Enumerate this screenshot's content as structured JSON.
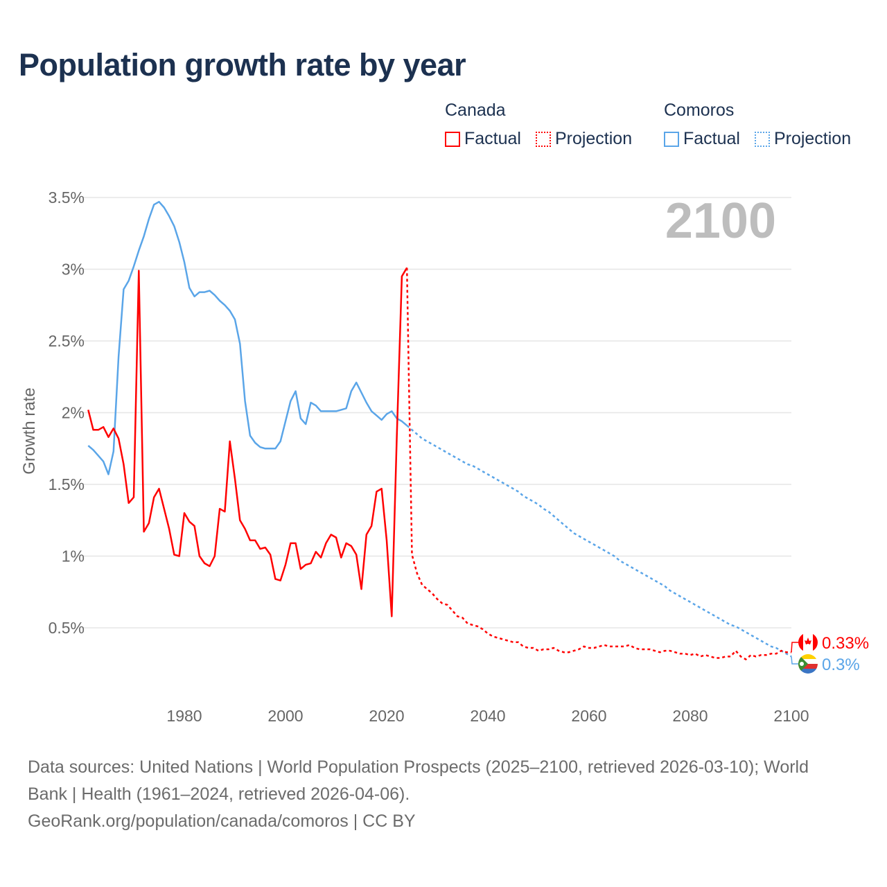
{
  "chart_data": {
    "type": "line",
    "title": "Population growth rate by year",
    "xlabel": "",
    "ylabel": "Growth rate",
    "xlim": [
      1960,
      2100
    ],
    "ylim": [
      0.2,
      3.6
    ],
    "x_ticks": [
      1980,
      2000,
      2020,
      2040,
      2060,
      2080,
      2100
    ],
    "x_tick_labels": [
      "1980",
      "2000",
      "2020",
      "2040",
      "2060",
      "2080",
      "2100"
    ],
    "y_ticks": [
      0.5,
      1,
      1.5,
      2,
      2.5,
      3,
      3.5
    ],
    "y_tick_labels": [
      "0.5%",
      "1%",
      "1.5%",
      "2%",
      "2.5%",
      "3%",
      "3.5%"
    ],
    "grid": true,
    "legend_position": "top-right",
    "current_year_label": "2100",
    "series": [
      {
        "name": "Canada",
        "color": "#ff0000",
        "factual_start_year": 1961,
        "factual": [
          2.02,
          1.88,
          1.88,
          1.9,
          1.83,
          1.89,
          1.82,
          1.64,
          1.37,
          1.41,
          2.99,
          1.17,
          1.23,
          1.41,
          1.47,
          1.33,
          1.19,
          1.01,
          1.0,
          1.3,
          1.24,
          1.21,
          1.0,
          0.95,
          0.93,
          1.0,
          1.33,
          1.31,
          1.8,
          1.54,
          1.25,
          1.19,
          1.11,
          1.11,
          1.05,
          1.06,
          1.01,
          0.84,
          0.83,
          0.94,
          1.09,
          1.09,
          0.91,
          0.94,
          0.95,
          1.03,
          0.99,
          1.09,
          1.15,
          1.13,
          0.99,
          1.09,
          1.07,
          1.01,
          0.77,
          1.15,
          1.21,
          1.45,
          1.47,
          1.11,
          0.58,
          1.83,
          2.95,
          3.01
        ],
        "projection_start_year": 2024,
        "projection": [
          3.01,
          1.01,
          0.88,
          0.8,
          0.77,
          0.74,
          0.7,
          0.67,
          0.66,
          0.62,
          0.58,
          0.57,
          0.53,
          0.52,
          0.51,
          0.49,
          0.46,
          0.44,
          0.43,
          0.42,
          0.41,
          0.4,
          0.4,
          0.37,
          0.36,
          0.36,
          0.34,
          0.35,
          0.35,
          0.36,
          0.34,
          0.33,
          0.33,
          0.34,
          0.35,
          0.37,
          0.36,
          0.36,
          0.37,
          0.38,
          0.37,
          0.37,
          0.37,
          0.37,
          0.38,
          0.36,
          0.35,
          0.35,
          0.35,
          0.34,
          0.33,
          0.34,
          0.34,
          0.33,
          0.32,
          0.32,
          0.31,
          0.32,
          0.3,
          0.31,
          0.3,
          0.29,
          0.29,
          0.3,
          0.3,
          0.34,
          0.3,
          0.28,
          0.31,
          0.3,
          0.31,
          0.31,
          0.32,
          0.32,
          0.34,
          0.33,
          0.33
        ],
        "end_label": "0.33%"
      },
      {
        "name": "Comoros",
        "color": "#5aa5e8",
        "factual_start_year": 1961,
        "factual": [
          1.77,
          1.74,
          1.7,
          1.66,
          1.57,
          1.73,
          2.39,
          2.86,
          2.92,
          3.02,
          3.13,
          3.23,
          3.35,
          3.45,
          3.47,
          3.43,
          3.37,
          3.3,
          3.19,
          3.05,
          2.87,
          2.81,
          2.84,
          2.84,
          2.85,
          2.82,
          2.78,
          2.75,
          2.71,
          2.65,
          2.48,
          2.08,
          1.84,
          1.79,
          1.76,
          1.75,
          1.75,
          1.75,
          1.8,
          1.94,
          2.08,
          2.15,
          1.96,
          1.92,
          2.07,
          2.05,
          2.01,
          2.01,
          2.01,
          2.01,
          2.02,
          2.03,
          2.15,
          2.21,
          2.14,
          2.07,
          2.01,
          1.98,
          1.95,
          1.99,
          2.01,
          1.96,
          1.94,
          1.91
        ],
        "projection_start_year": 2024,
        "projection": [
          1.91,
          1.88,
          1.85,
          1.82,
          1.8,
          1.78,
          1.76,
          1.74,
          1.72,
          1.7,
          1.68,
          1.66,
          1.64,
          1.63,
          1.61,
          1.59,
          1.57,
          1.55,
          1.53,
          1.51,
          1.49,
          1.47,
          1.45,
          1.42,
          1.4,
          1.38,
          1.36,
          1.33,
          1.31,
          1.28,
          1.25,
          1.22,
          1.19,
          1.16,
          1.14,
          1.12,
          1.1,
          1.08,
          1.06,
          1.04,
          1.02,
          1.0,
          0.97,
          0.95,
          0.93,
          0.91,
          0.89,
          0.87,
          0.85,
          0.83,
          0.81,
          0.79,
          0.76,
          0.74,
          0.72,
          0.7,
          0.68,
          0.66,
          0.64,
          0.62,
          0.6,
          0.58,
          0.56,
          0.54,
          0.52,
          0.51,
          0.49,
          0.47,
          0.45,
          0.43,
          0.41,
          0.39,
          0.37,
          0.36,
          0.34,
          0.32,
          0.3
        ],
        "end_label": "0.3%"
      }
    ]
  },
  "legend": {
    "groups": [
      {
        "name": "Canada",
        "factual": "Factual",
        "projection": "Projection"
      },
      {
        "name": "Comoros",
        "factual": "Factual",
        "projection": "Projection"
      }
    ]
  },
  "footer": {
    "sources": "Data sources: United Nations | World Population Prospects (2025–2100, retrieved 2026-03-10); World Bank | Health (1961–2024, retrieved 2026-04-06).",
    "credit": "GeoRank.org/population/canada/comoros | CC BY"
  }
}
